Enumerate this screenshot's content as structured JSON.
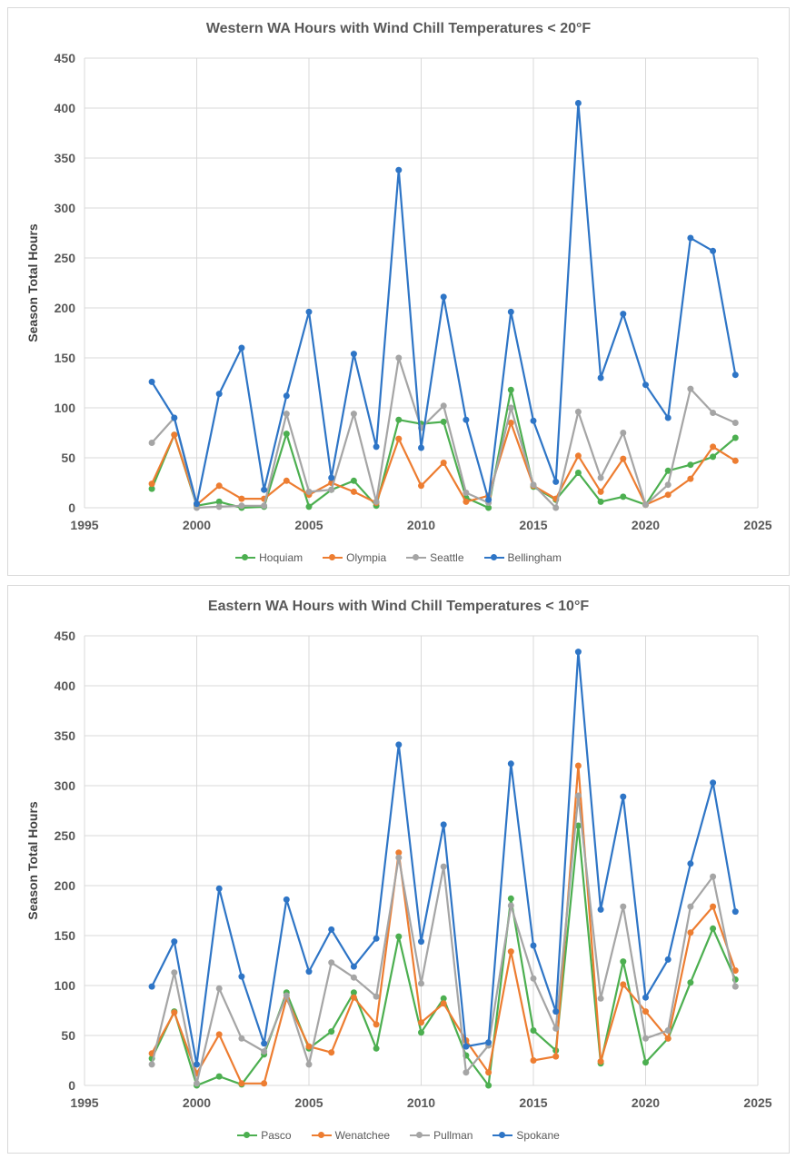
{
  "chart_data": [
    {
      "type": "line",
      "title": "Western WA Hours with Wind Chill Temperatures < 20°F",
      "xlabel": "",
      "ylabel": "Season Total Hours",
      "xlim": [
        1995,
        2025
      ],
      "ylim": [
        0,
        450
      ],
      "xticks": [
        "1995",
        "2000",
        "2005",
        "2010",
        "2015",
        "2020",
        "2025"
      ],
      "yticks": [
        "0",
        "50",
        "100",
        "150",
        "200",
        "250",
        "300",
        "350",
        "400",
        "450"
      ],
      "grid": true,
      "legend": "bottom",
      "x": [
        1998,
        1999,
        2000,
        2001,
        2002,
        2003,
        2004,
        2005,
        2006,
        2007,
        2008,
        2009,
        2010,
        2011,
        2012,
        2013,
        2014,
        2015,
        2016,
        2017,
        2018,
        2019,
        2020,
        2021,
        2022,
        2023,
        2024
      ],
      "series": [
        {
          "name": "Hoquiam",
          "color": "#4caf50",
          "values": [
            19,
            73,
            2,
            6,
            0,
            1,
            74,
            1,
            18,
            27,
            2,
            88,
            84,
            86,
            10,
            0,
            118,
            21,
            8,
            35,
            6,
            11,
            3,
            37,
            43,
            51,
            70
          ]
        },
        {
          "name": "Olympia",
          "color": "#ed7d31",
          "values": [
            24,
            73,
            3,
            22,
            9,
            9,
            27,
            13,
            25,
            16,
            5,
            69,
            22,
            45,
            6,
            12,
            85,
            22,
            9,
            52,
            16,
            49,
            3,
            13,
            29,
            61,
            47
          ]
        },
        {
          "name": "Seattle",
          "color": "#a5a5a5",
          "values": [
            65,
            90,
            0,
            1,
            2,
            2,
            94,
            16,
            18,
            94,
            6,
            150,
            80,
            102,
            15,
            5,
            100,
            23,
            0,
            96,
            30,
            75,
            3,
            23,
            119,
            95,
            85
          ]
        },
        {
          "name": "Bellingham",
          "color": "#2e75c6",
          "values": [
            126,
            90,
            4,
            114,
            160,
            18,
            112,
            196,
            30,
            154,
            61,
            338,
            60,
            211,
            88,
            8,
            196,
            87,
            26,
            405,
            130,
            194,
            123,
            90,
            270,
            257,
            133
          ]
        }
      ]
    },
    {
      "type": "line",
      "title": "Eastern WA Hours with Wind Chill Temperatures < 10°F",
      "xlabel": "",
      "ylabel": "Season Total Hours",
      "xlim": [
        1995,
        2025
      ],
      "ylim": [
        0,
        450
      ],
      "xticks": [
        "1995",
        "2000",
        "2005",
        "2010",
        "2015",
        "2020",
        "2025"
      ],
      "yticks": [
        "0",
        "50",
        "100",
        "150",
        "200",
        "250",
        "300",
        "350",
        "400",
        "450"
      ],
      "grid": true,
      "legend": "bottom",
      "x": [
        1998,
        1999,
        2000,
        2001,
        2002,
        2003,
        2004,
        2005,
        2006,
        2007,
        2008,
        2009,
        2010,
        2011,
        2012,
        2013,
        2014,
        2015,
        2016,
        2017,
        2018,
        2019,
        2020,
        2021,
        2022,
        2023,
        2024
      ],
      "series": [
        {
          "name": "Pasco",
          "color": "#4caf50",
          "values": [
            27,
            74,
            0,
            9,
            1,
            31,
            93,
            37,
            54,
            93,
            37,
            149,
            53,
            87,
            30,
            0,
            187,
            55,
            35,
            260,
            22,
            124,
            23,
            47,
            103,
            157,
            106
          ]
        },
        {
          "name": "Wenatchee",
          "color": "#ed7d31",
          "values": [
            32,
            73,
            12,
            51,
            2,
            2,
            87,
            39,
            33,
            88,
            61,
            233,
            63,
            82,
            45,
            13,
            134,
            25,
            29,
            320,
            24,
            101,
            74,
            47,
            153,
            179,
            115
          ]
        },
        {
          "name": "Pullman",
          "color": "#a5a5a5",
          "values": [
            21,
            113,
            2,
            97,
            47,
            34,
            90,
            21,
            123,
            108,
            89,
            228,
            102,
            219,
            13,
            40,
            180,
            107,
            57,
            290,
            87,
            179,
            47,
            55,
            179,
            209,
            99
          ]
        },
        {
          "name": "Spokane",
          "color": "#2e75c6",
          "values": [
            99,
            144,
            21,
            197,
            109,
            42,
            186,
            114,
            156,
            119,
            147,
            341,
            144,
            261,
            39,
            43,
            322,
            140,
            74,
            434,
            176,
            289,
            88,
            126,
            222,
            303,
            174
          ]
        }
      ]
    }
  ]
}
